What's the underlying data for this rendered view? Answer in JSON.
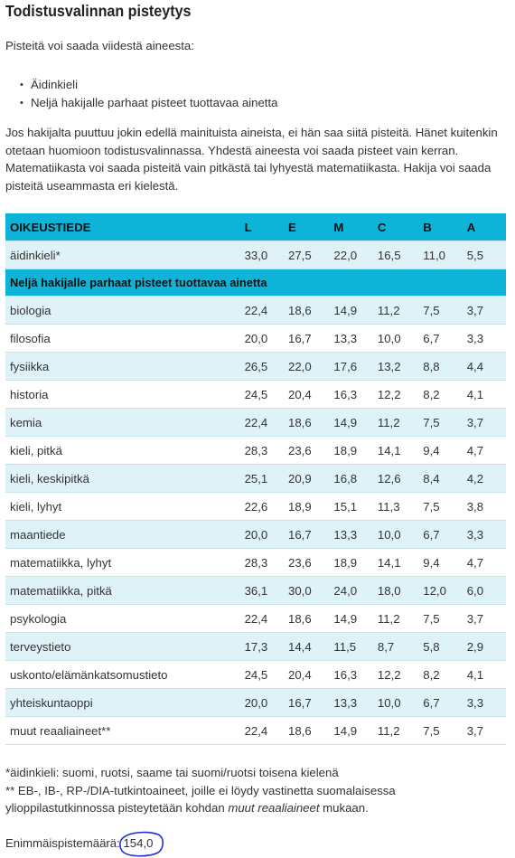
{
  "title": "Todistusvalinnan pisteytys",
  "intro": "Pisteitä voi saada viidestä aineesta:",
  "criteria": [
    "Äidinkieli",
    "Neljä hakijalle parhaat pisteet tuottavaa ainetta"
  ],
  "explanation": "Jos hakijalta puuttuu jokin edellä mainituista aineista, ei hän saa siitä pisteitä. Hänet kuitenkin otetaan huomioon todistusvalinnassa. Yhdestä aineesta voi saada pisteet vain kerran. Matematiikasta voi saada pisteitä vain pitkästä tai lyhyestä matematiikasta. Hakija voi saada pisteitä useammasta eri kielestä.",
  "table": {
    "headers": [
      "OIKEUSTIEDE",
      "L",
      "E",
      "M",
      "C",
      "B",
      "A"
    ],
    "mother_tongue_row": [
      "äidinkieli*",
      "33,0",
      "27,5",
      "22,0",
      "16,5",
      "11,0",
      "5,5"
    ],
    "section_label": "Neljä hakijalle parhaat pisteet tuottavaa ainetta",
    "rows": [
      [
        "biologia",
        "22,4",
        "18,6",
        "14,9",
        "11,2",
        "7,5",
        "3,7"
      ],
      [
        "filosofia",
        "20,0",
        "16,7",
        "13,3",
        "10,0",
        "6,7",
        "3,3"
      ],
      [
        "fysiikka",
        "26,5",
        "22,0",
        "17,6",
        "13,2",
        "8,8",
        "4,4"
      ],
      [
        "historia",
        "24,5",
        "20,4",
        "16,3",
        "12,2",
        "8,2",
        "4,1"
      ],
      [
        "kemia",
        "22,4",
        "18,6",
        "14,9",
        "11,2",
        "7,5",
        "3,7"
      ],
      [
        "kieli, pitkä",
        "28,3",
        "23,6",
        "18,9",
        "14,1",
        "9,4",
        "4,7"
      ],
      [
        "kieli, keskipitkä",
        "25,1",
        "20,9",
        "16,8",
        "12,6",
        "8,4",
        "4,2"
      ],
      [
        "kieli, lyhyt",
        "22,6",
        "18,9",
        "15,1",
        "11,3",
        "7,5",
        "3,8"
      ],
      [
        "maantiede",
        "20,0",
        "16,7",
        "13,3",
        "10,0",
        "6,7",
        "3,3"
      ],
      [
        "matematiikka, lyhyt",
        "28,3",
        "23,6",
        "18,9",
        "14,1",
        "9,4",
        "4,7"
      ],
      [
        "matematiikka, pitkä",
        "36,1",
        "30,0",
        "24,0",
        "18,0",
        "12,0",
        "6,0"
      ],
      [
        "psykologia",
        "22,4",
        "18,6",
        "14,9",
        "11,2",
        "7,5",
        "3,7"
      ],
      [
        "terveystieto",
        "17,3",
        "14,4",
        "11,5",
        "8,7",
        "5,8",
        "2,9"
      ],
      [
        "uskonto/elämänkatsomustieto",
        "24,5",
        "20,4",
        "16,3",
        "12,2",
        "8,2",
        "4,1"
      ],
      [
        "yhteiskuntaoppi",
        "20,0",
        "16,7",
        "13,3",
        "10,0",
        "6,7",
        "3,3"
      ],
      [
        "muut reaaliaineet**",
        "22,4",
        "18,6",
        "14,9",
        "11,2",
        "7,5",
        "3,7"
      ]
    ]
  },
  "footnotes": {
    "note1": "*äidinkieli: suomi, ruotsi, saame tai suomi/ruotsi toisena kielenä",
    "note2_before": "** EB-, IB-, RP-/DIA-tutkintoaineet, joille ei löydy vastinetta suomalaisessa ylioppilastutkinnossa pisteytetään kohdan ",
    "note2_em": "muut reaaliaineet",
    "note2_after": " mukaan."
  },
  "max_points": {
    "label": "Enimmäispistemäärä: ",
    "value": "154,0"
  },
  "colors": {
    "header_bg": "#0eb4d8",
    "stripe_bg": "#dff2f8",
    "annotation_circle": "#1a2fd6"
  }
}
